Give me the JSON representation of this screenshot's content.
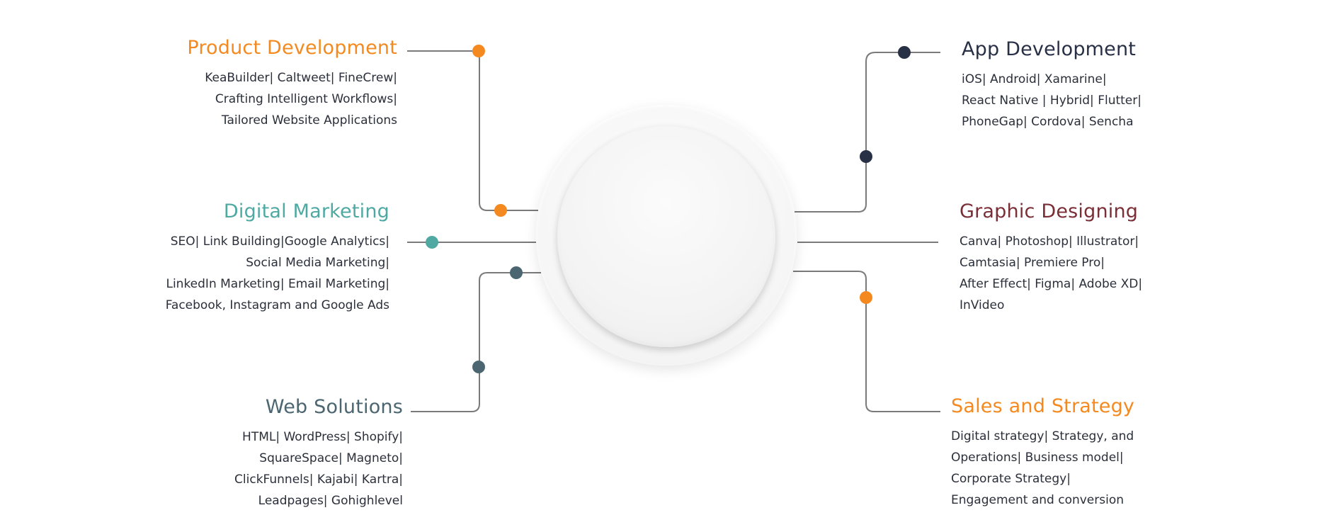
{
  "colors": {
    "orange": "#f48a1f",
    "teal": "#4fa9a2",
    "slate": "#4b6670",
    "navy": "#283046",
    "maroon": "#7a2f37",
    "connector": "#7a7a7a"
  },
  "center": {
    "logo_text": ""
  },
  "sections": {
    "product_development": {
      "title": "Product Development",
      "lines": [
        "KeaBuilder| Caltweet| FineCrew|",
        "Crafting Intelligent Workflows|",
        "Tailored Website Applications"
      ]
    },
    "digital_marketing": {
      "title": "Digital Marketing",
      "lines": [
        "SEO| Link Building|Google Analytics|",
        "Social Media Marketing|",
        "LinkedIn Marketing| Email Marketing|",
        "Facebook, Instagram and Google Ads"
      ]
    },
    "web_solutions": {
      "title": "Web Solutions",
      "lines": [
        "HTML| WordPress| Shopify|",
        "SquareSpace| Magneto|",
        "ClickFunnels| Kajabi| Kartra|",
        "Leadpages| Gohighlevel"
      ]
    },
    "app_development": {
      "title": "App Development",
      "lines": [
        "iOS| Android| Xamarine|",
        "React Native | Hybrid| Flutter|",
        "PhoneGap| Cordova| Sencha"
      ]
    },
    "graphic_designing": {
      "title": "Graphic Designing",
      "lines": [
        "Canva| Photoshop| Illustrator|",
        "Camtasia| Premiere Pro|",
        "After Effect| Figma| Adobe XD|",
        "InVideo"
      ]
    },
    "sales_strategy": {
      "title": "Sales and Strategy",
      "lines": [
        "Digital strategy| Strategy, and",
        "Operations| Business model|",
        "Corporate Strategy|",
        "Engagement and conversion"
      ]
    }
  }
}
